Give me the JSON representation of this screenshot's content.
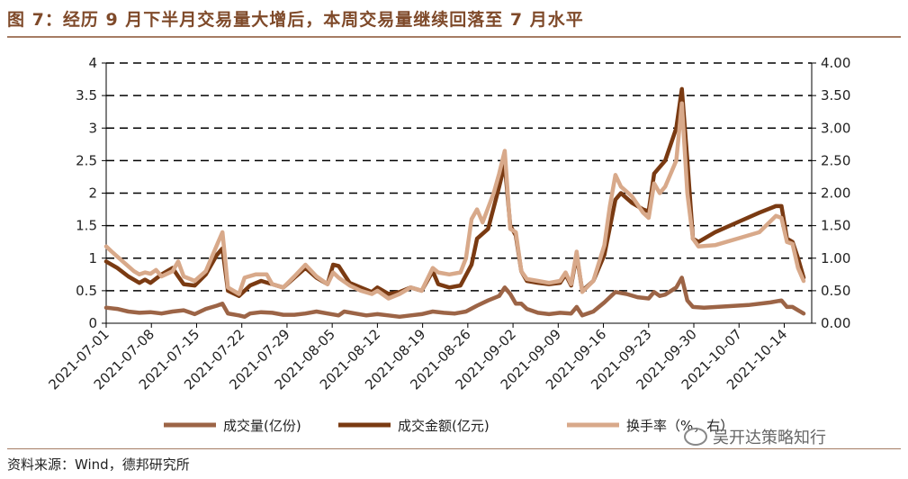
{
  "header": {
    "title": "图 7：经历 9 月下半月交易量大增后，本周交易量继续回落至 7 月水平"
  },
  "footer": {
    "source": "资料来源：Wind，德邦研究所",
    "watermark": "吴开达策略知行"
  },
  "chart_data": {
    "type": "line",
    "x": [
      "2021-07-01",
      "2021-07-08",
      "2021-07-15",
      "2021-07-22",
      "2021-07-29",
      "2021-08-05",
      "2021-08-12",
      "2021-08-19",
      "2021-08-26",
      "2021-09-02",
      "2021-09-09",
      "2021-09-16",
      "2021-09-23",
      "2021-09-30",
      "2021-10-07",
      "2021-10-14"
    ],
    "x_tick_labels": [
      "2021-07-01",
      "2021-07-08",
      "2021-07-15",
      "2021-07-22",
      "2021-07-29",
      "2021-08-05",
      "2021-08-12",
      "2021-08-19",
      "2021-08-26",
      "2021-09-02",
      "2021-09-09",
      "2021-09-16",
      "2021-09-23",
      "2021-09-30",
      "2021-10-07",
      "2021-10-14"
    ],
    "y_left_ticks": [
      "0",
      "0.5",
      "1",
      "1.5",
      "2",
      "2.5",
      "3",
      "3.5",
      "4"
    ],
    "y_right_ticks": [
      "0.00",
      "0.50",
      "1.00",
      "1.50",
      "2.00",
      "2.50",
      "3.00",
      "3.50",
      "4.00"
    ],
    "ylim_left": [
      0,
      4
    ],
    "ylim_right": [
      0,
      4
    ],
    "x_day_range": [
      0,
      108
    ],
    "grid": "horizontal-dashed",
    "legend_position": "bottom",
    "series": [
      {
        "name": "成交量(亿份)",
        "color": "#9c6446",
        "axis": "left",
        "points": [
          [
            0,
            0.24
          ],
          [
            2,
            0.22
          ],
          [
            4,
            0.18
          ],
          [
            6,
            0.16
          ],
          [
            8,
            0.17
          ],
          [
            10,
            0.15
          ],
          [
            12,
            0.18
          ],
          [
            14,
            0.2
          ],
          [
            16,
            0.14
          ],
          [
            18,
            0.22
          ],
          [
            20,
            0.27
          ],
          [
            21,
            0.3
          ],
          [
            22,
            0.15
          ],
          [
            24,
            0.12
          ],
          [
            25,
            0.1
          ],
          [
            26,
            0.15
          ],
          [
            28,
            0.17
          ],
          [
            30,
            0.16
          ],
          [
            32,
            0.13
          ],
          [
            34,
            0.13
          ],
          [
            36,
            0.15
          ],
          [
            38,
            0.18
          ],
          [
            40,
            0.15
          ],
          [
            42,
            0.12
          ],
          [
            43,
            0.18
          ],
          [
            45,
            0.15
          ],
          [
            47,
            0.12
          ],
          [
            49,
            0.14
          ],
          [
            51,
            0.12
          ],
          [
            53,
            0.1
          ],
          [
            55,
            0.12
          ],
          [
            57,
            0.14
          ],
          [
            59,
            0.18
          ],
          [
            61,
            0.16
          ],
          [
            63,
            0.15
          ],
          [
            65,
            0.18
          ],
          [
            67,
            0.27
          ],
          [
            69,
            0.35
          ],
          [
            71,
            0.42
          ],
          [
            72,
            0.55
          ],
          [
            73,
            0.45
          ],
          [
            74,
            0.3
          ],
          [
            75,
            0.3
          ],
          [
            76,
            0.22
          ],
          [
            78,
            0.16
          ],
          [
            80,
            0.14
          ],
          [
            82,
            0.16
          ],
          [
            84,
            0.15
          ],
          [
            85,
            0.25
          ],
          [
            86,
            0.12
          ],
          [
            88,
            0.18
          ],
          [
            90,
            0.32
          ],
          [
            92,
            0.48
          ],
          [
            94,
            0.45
          ],
          [
            96,
            0.4
          ],
          [
            98,
            0.38
          ],
          [
            99,
            0.48
          ],
          [
            100,
            0.42
          ],
          [
            101,
            0.44
          ],
          [
            103,
            0.55
          ],
          [
            104,
            0.7
          ],
          [
            105,
            0.35
          ],
          [
            106,
            0.25
          ],
          [
            108,
            0.24
          ],
          [
            112,
            0.26
          ],
          [
            116,
            0.28
          ],
          [
            120,
            0.32
          ],
          [
            122,
            0.35
          ],
          [
            123,
            0.25
          ],
          [
            124,
            0.25
          ],
          [
            125,
            0.2
          ],
          [
            126,
            0.15
          ]
        ]
      },
      {
        "name": "成交金额(亿元)",
        "color": "#7a3a12",
        "axis": "left",
        "points": [
          [
            0,
            0.95
          ],
          [
            2,
            0.85
          ],
          [
            4,
            0.72
          ],
          [
            6,
            0.62
          ],
          [
            7,
            0.67
          ],
          [
            8,
            0.62
          ],
          [
            10,
            0.75
          ],
          [
            12,
            0.85
          ],
          [
            13,
            0.72
          ],
          [
            14,
            0.6
          ],
          [
            16,
            0.58
          ],
          [
            18,
            0.75
          ],
          [
            20,
            1.05
          ],
          [
            21,
            1.15
          ],
          [
            22,
            0.5
          ],
          [
            24,
            0.42
          ],
          [
            26,
            0.58
          ],
          [
            28,
            0.65
          ],
          [
            30,
            0.6
          ],
          [
            32,
            0.55
          ],
          [
            34,
            0.7
          ],
          [
            36,
            0.85
          ],
          [
            38,
            0.7
          ],
          [
            40,
            0.6
          ],
          [
            41,
            0.9
          ],
          [
            42,
            0.88
          ],
          [
            44,
            0.62
          ],
          [
            46,
            0.55
          ],
          [
            48,
            0.48
          ],
          [
            49,
            0.55
          ],
          [
            51,
            0.45
          ],
          [
            53,
            0.48
          ],
          [
            55,
            0.55
          ],
          [
            57,
            0.5
          ],
          [
            59,
            0.8
          ],
          [
            60,
            0.6
          ],
          [
            62,
            0.55
          ],
          [
            64,
            0.58
          ],
          [
            66,
            0.9
          ],
          [
            67,
            1.3
          ],
          [
            69,
            1.45
          ],
          [
            71,
            2.1
          ],
          [
            72,
            2.45
          ],
          [
            73,
            1.5
          ],
          [
            74,
            1.35
          ],
          [
            75,
            0.8
          ],
          [
            76,
            0.65
          ],
          [
            78,
            0.62
          ],
          [
            80,
            0.6
          ],
          [
            82,
            0.62
          ],
          [
            83,
            0.75
          ],
          [
            84,
            0.58
          ],
          [
            85,
            1.05
          ],
          [
            86,
            0.5
          ],
          [
            88,
            0.65
          ],
          [
            90,
            1.05
          ],
          [
            92,
            1.9
          ],
          [
            93,
            2.0
          ],
          [
            95,
            1.85
          ],
          [
            97,
            1.75
          ],
          [
            98,
            1.72
          ],
          [
            99,
            2.3
          ],
          [
            101,
            2.5
          ],
          [
            103,
            3.0
          ],
          [
            104,
            3.6
          ],
          [
            105,
            2.5
          ],
          [
            106,
            1.3
          ],
          [
            107,
            1.25
          ],
          [
            110,
            1.4
          ],
          [
            114,
            1.55
          ],
          [
            118,
            1.7
          ],
          [
            121,
            1.8
          ],
          [
            122,
            1.8
          ],
          [
            123,
            1.3
          ],
          [
            124,
            1.25
          ],
          [
            125,
            1.0
          ],
          [
            126,
            0.7
          ]
        ]
      },
      {
        "name": "换手率（%，右）",
        "color": "#d8a98a",
        "axis": "right",
        "points": [
          [
            0,
            1.18
          ],
          [
            1,
            1.1
          ],
          [
            3,
            0.95
          ],
          [
            5,
            0.8
          ],
          [
            6,
            0.75
          ],
          [
            7,
            0.78
          ],
          [
            8,
            0.76
          ],
          [
            9,
            0.82
          ],
          [
            10,
            0.72
          ],
          [
            12,
            0.8
          ],
          [
            13,
            0.95
          ],
          [
            14,
            0.72
          ],
          [
            16,
            0.65
          ],
          [
            18,
            0.8
          ],
          [
            20,
            1.2
          ],
          [
            21,
            1.4
          ],
          [
            22,
            0.55
          ],
          [
            24,
            0.45
          ],
          [
            25,
            0.7
          ],
          [
            27,
            0.75
          ],
          [
            29,
            0.75
          ],
          [
            30,
            0.6
          ],
          [
            32,
            0.55
          ],
          [
            34,
            0.72
          ],
          [
            36,
            0.9
          ],
          [
            38,
            0.72
          ],
          [
            40,
            0.6
          ],
          [
            41,
            0.78
          ],
          [
            42,
            0.7
          ],
          [
            44,
            0.58
          ],
          [
            46,
            0.5
          ],
          [
            48,
            0.45
          ],
          [
            49,
            0.5
          ],
          [
            51,
            0.38
          ],
          [
            53,
            0.45
          ],
          [
            55,
            0.55
          ],
          [
            57,
            0.5
          ],
          [
            59,
            0.85
          ],
          [
            60,
            0.78
          ],
          [
            62,
            0.75
          ],
          [
            64,
            0.78
          ],
          [
            65,
            1.0
          ],
          [
            66,
            1.6
          ],
          [
            67,
            1.75
          ],
          [
            68,
            1.55
          ],
          [
            70,
            2.0
          ],
          [
            71,
            2.3
          ],
          [
            72,
            2.65
          ],
          [
            73,
            1.45
          ],
          [
            74,
            1.4
          ],
          [
            75,
            0.8
          ],
          [
            76,
            0.68
          ],
          [
            78,
            0.65
          ],
          [
            80,
            0.62
          ],
          [
            82,
            0.65
          ],
          [
            83,
            0.78
          ],
          [
            84,
            0.6
          ],
          [
            85,
            1.1
          ],
          [
            86,
            0.48
          ],
          [
            88,
            0.65
          ],
          [
            90,
            1.2
          ],
          [
            91,
            1.8
          ],
          [
            92,
            2.28
          ],
          [
            93,
            2.1
          ],
          [
            95,
            1.95
          ],
          [
            97,
            1.7
          ],
          [
            98,
            1.62
          ],
          [
            99,
            2.15
          ],
          [
            100,
            2.0
          ],
          [
            101,
            2.1
          ],
          [
            103,
            2.5
          ],
          [
            104,
            3.38
          ],
          [
            105,
            2.0
          ],
          [
            106,
            1.3
          ],
          [
            107,
            1.18
          ],
          [
            110,
            1.2
          ],
          [
            114,
            1.3
          ],
          [
            118,
            1.4
          ],
          [
            121,
            1.65
          ],
          [
            122,
            1.62
          ],
          [
            123,
            1.25
          ],
          [
            124,
            1.22
          ],
          [
            125,
            0.85
          ],
          [
            126,
            0.65
          ]
        ]
      }
    ]
  }
}
